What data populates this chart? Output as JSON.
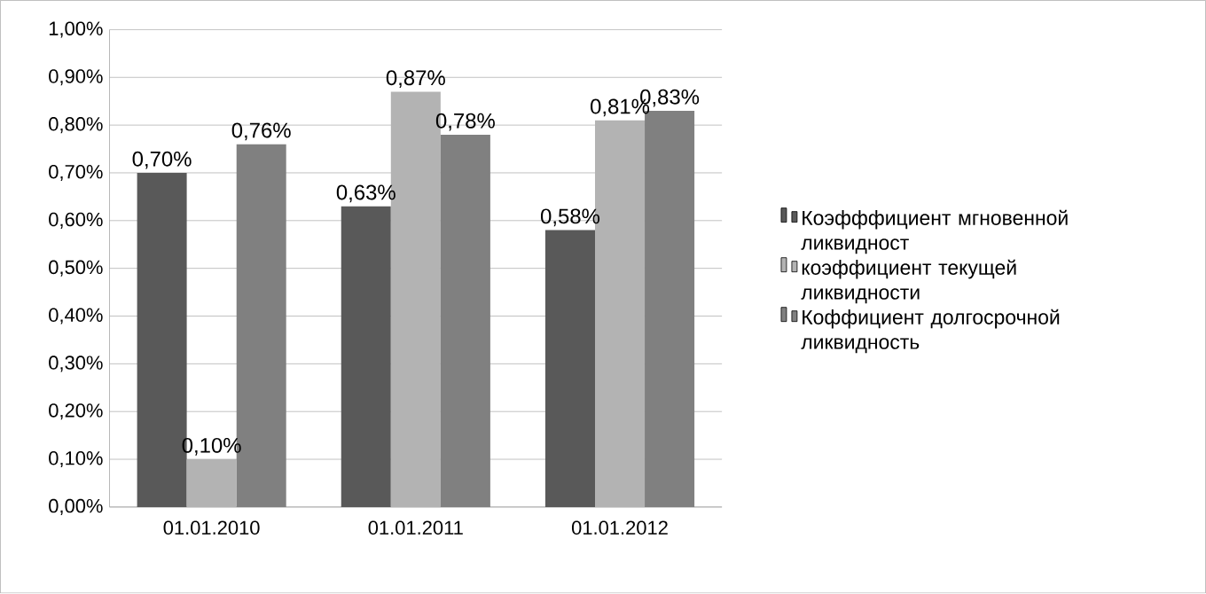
{
  "chart_data": {
    "type": "bar",
    "categories": [
      "01.01.2010",
      "01.01.2011",
      "01.01.2012"
    ],
    "series": [
      {
        "name": "Коэфффициент мгновенной ликвидност",
        "color": "#595959",
        "values": [
          0.7,
          0.63,
          0.58
        ],
        "value_labels": [
          "0,70%",
          "0,63%",
          "0,58%"
        ]
      },
      {
        "name": "коэффициент текущей ликвидности",
        "color": "#b3b3b3",
        "values": [
          0.1,
          0.87,
          0.81
        ],
        "value_labels": [
          "0,10%",
          "0,87%",
          "0,81%"
        ]
      },
      {
        "name": "Коффициент долгосрочной ликвидность",
        "color": "#808080",
        "values": [
          0.76,
          0.78,
          0.83
        ],
        "value_labels": [
          "0,76%",
          "0,78%",
          "0,83%"
        ]
      }
    ],
    "ylim": [
      0,
      1
    ],
    "yticks": [
      {
        "value": 0,
        "label": "0,00%"
      },
      {
        "value": 0.1,
        "label": "0,10%"
      },
      {
        "value": 0.2,
        "label": "0,20%"
      },
      {
        "value": 0.3,
        "label": "0,30%"
      },
      {
        "value": 0.4,
        "label": "0,40%"
      },
      {
        "value": 0.5,
        "label": "0,50%"
      },
      {
        "value": 0.6,
        "label": "0,60%"
      },
      {
        "value": 0.7,
        "label": "0,70%"
      },
      {
        "value": 0.8,
        "label": "0,80%"
      },
      {
        "value": 0.9,
        "label": "0,90%"
      },
      {
        "value": 1,
        "label": "1,00%"
      }
    ],
    "grid": "y",
    "legend": "right"
  }
}
